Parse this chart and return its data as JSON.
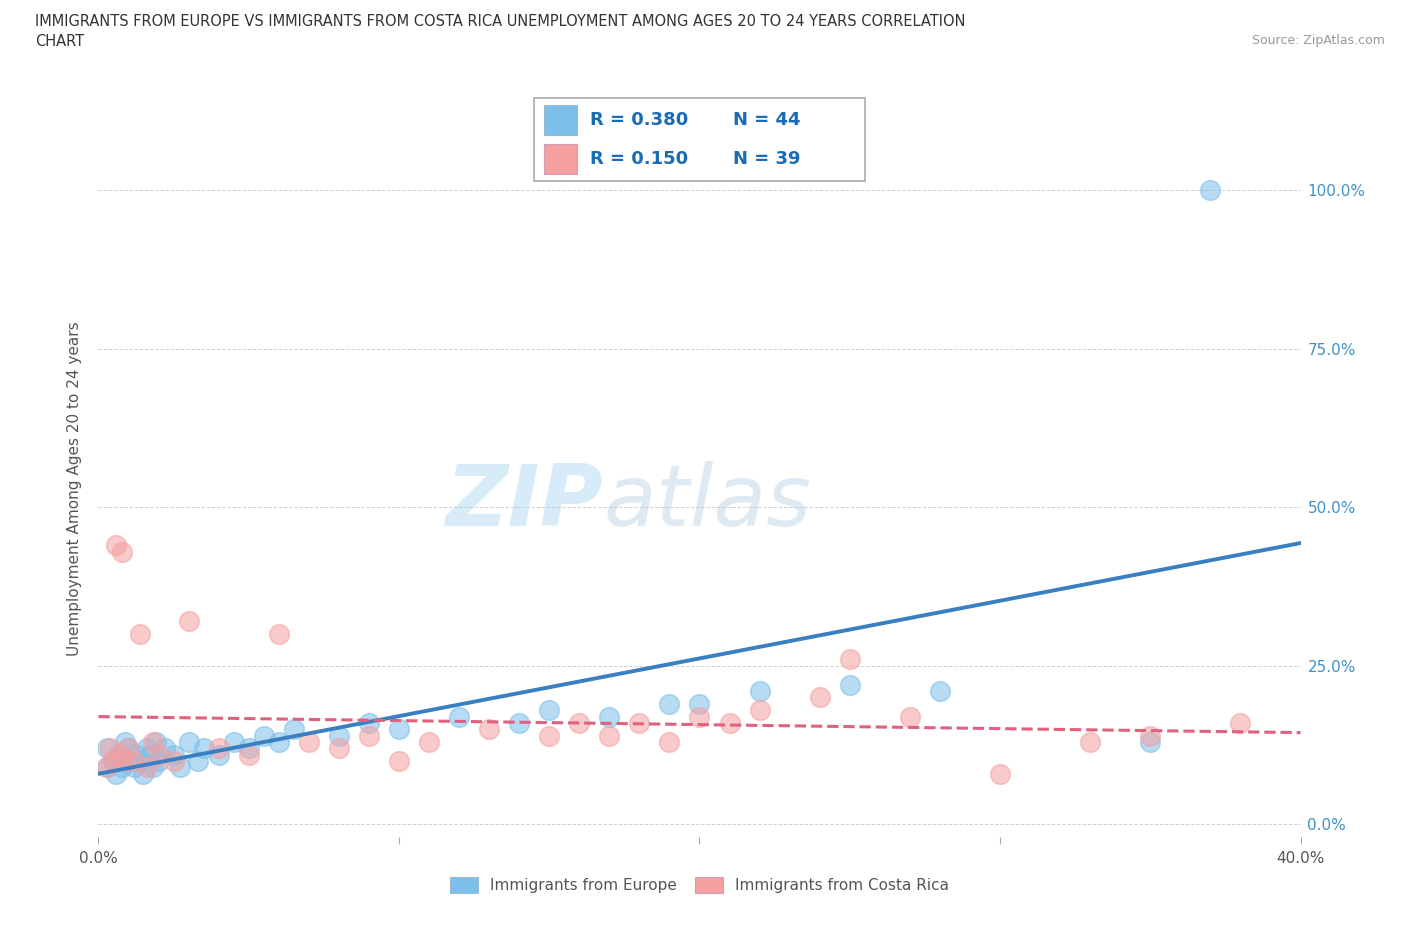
{
  "title_line1": "IMMIGRANTS FROM EUROPE VS IMMIGRANTS FROM COSTA RICA UNEMPLOYMENT AMONG AGES 20 TO 24 YEARS CORRELATION",
  "title_line2": "CHART",
  "source": "Source: ZipAtlas.com",
  "ylabel": "Unemployment Among Ages 20 to 24 years",
  "xmin": 0.0,
  "xmax": 0.4,
  "ymin": -0.02,
  "ymax": 1.08,
  "europe_color": "#7bbfea",
  "costa_rica_color": "#f4a0a0",
  "europe_R": 0.38,
  "europe_N": 44,
  "costa_rica_R": 0.15,
  "costa_rica_N": 39,
  "europe_line_color": "#3a7fc1",
  "costa_rica_line_color": "#e06080",
  "watermark_zip": "ZIP",
  "watermark_atlas": "atlas",
  "legend_R_N_color": "#1a6bb5",
  "axis_label_color": "#555555",
  "ytick_color": "#4292c6",
  "europe_scatter_x": [
    0.003,
    0.003,
    0.005,
    0.006,
    0.007,
    0.008,
    0.009,
    0.01,
    0.01,
    0.012,
    0.013,
    0.014,
    0.015,
    0.016,
    0.017,
    0.018,
    0.019,
    0.02,
    0.022,
    0.025,
    0.027,
    0.03,
    0.033,
    0.035,
    0.04,
    0.045,
    0.05,
    0.055,
    0.06,
    0.065,
    0.08,
    0.09,
    0.1,
    0.12,
    0.14,
    0.15,
    0.17,
    0.19,
    0.2,
    0.22,
    0.25,
    0.28,
    0.35,
    0.37
  ],
  "europe_scatter_y": [
    0.09,
    0.12,
    0.1,
    0.08,
    0.11,
    0.09,
    0.13,
    0.1,
    0.12,
    0.09,
    0.11,
    0.1,
    0.08,
    0.12,
    0.11,
    0.09,
    0.13,
    0.1,
    0.12,
    0.11,
    0.09,
    0.13,
    0.1,
    0.12,
    0.11,
    0.13,
    0.12,
    0.14,
    0.13,
    0.15,
    0.14,
    0.16,
    0.15,
    0.17,
    0.16,
    0.18,
    0.17,
    0.19,
    0.19,
    0.21,
    0.22,
    0.21,
    0.13,
    1.0
  ],
  "costa_rica_scatter_x": [
    0.003,
    0.004,
    0.005,
    0.006,
    0.007,
    0.008,
    0.009,
    0.01,
    0.012,
    0.014,
    0.016,
    0.018,
    0.02,
    0.025,
    0.03,
    0.04,
    0.05,
    0.06,
    0.07,
    0.08,
    0.09,
    0.1,
    0.11,
    0.13,
    0.15,
    0.16,
    0.17,
    0.18,
    0.19,
    0.2,
    0.21,
    0.22,
    0.24,
    0.25,
    0.27,
    0.3,
    0.33,
    0.35,
    0.38
  ],
  "costa_rica_scatter_y": [
    0.09,
    0.12,
    0.1,
    0.44,
    0.11,
    0.43,
    0.1,
    0.12,
    0.1,
    0.3,
    0.09,
    0.13,
    0.11,
    0.1,
    0.32,
    0.12,
    0.11,
    0.3,
    0.13,
    0.12,
    0.14,
    0.1,
    0.13,
    0.15,
    0.14,
    0.16,
    0.14,
    0.16,
    0.13,
    0.17,
    0.16,
    0.18,
    0.2,
    0.26,
    0.17,
    0.08,
    0.13,
    0.14,
    0.16
  ]
}
